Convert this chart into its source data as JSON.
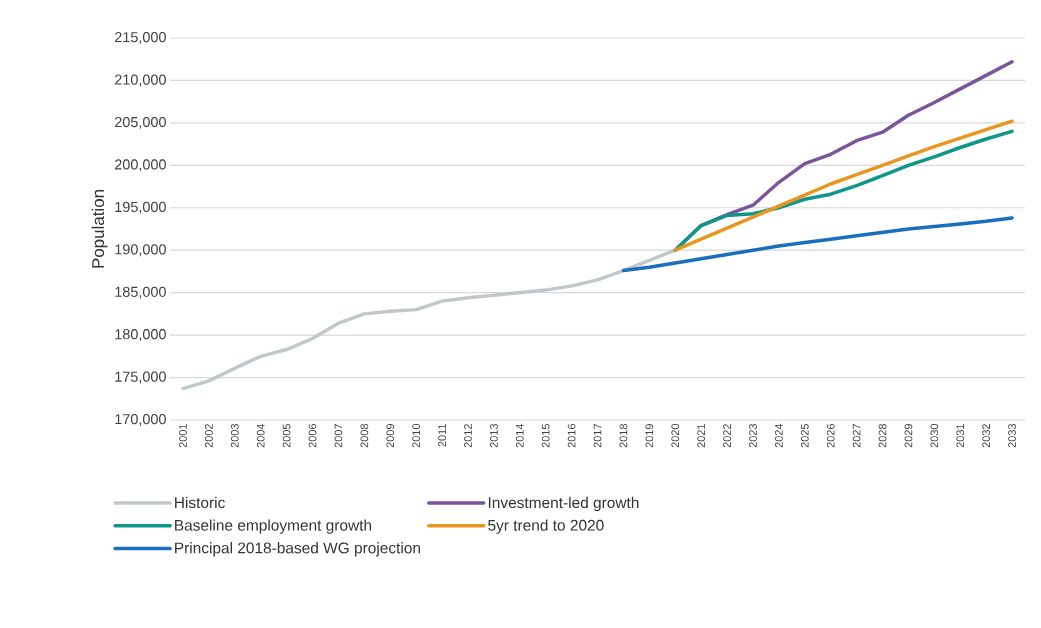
{
  "chart_data": {
    "type": "line",
    "ylabel": "Population",
    "categories": [
      "2001",
      "2002",
      "2003",
      "2004",
      "2005",
      "2006",
      "2007",
      "2008",
      "2009",
      "2010",
      "2011",
      "2012",
      "2013",
      "2014",
      "2015",
      "2016",
      "2017",
      "2018",
      "2019",
      "2020",
      "2021",
      "2022",
      "2023",
      "2024",
      "2025",
      "2026",
      "2027",
      "2028",
      "2029",
      "2030",
      "2031",
      "2032",
      "2033"
    ],
    "series": [
      {
        "name": "Historic",
        "color": "#bfc8cc",
        "values": [
          173700,
          174600,
          176100,
          177500,
          178300,
          179600,
          181400,
          182500,
          182800,
          183000,
          184000,
          184400,
          184700,
          185000,
          185300,
          185800,
          186500,
          187600,
          188800,
          190000,
          null,
          null,
          null,
          null,
          null,
          null,
          null,
          null,
          null,
          null,
          null,
          null,
          null
        ]
      },
      {
        "name": "Investment-led growth",
        "color": "#7a559b",
        "values": [
          null,
          null,
          null,
          null,
          null,
          null,
          null,
          null,
          null,
          null,
          null,
          null,
          null,
          null,
          null,
          null,
          null,
          null,
          null,
          190000,
          192900,
          194200,
          195300,
          198000,
          200200,
          201300,
          202900,
          203900,
          205900,
          207400,
          209000,
          210600,
          212200
        ]
      },
      {
        "name": "Baseline employment growth",
        "color": "#0e968a",
        "values": [
          null,
          null,
          null,
          null,
          null,
          null,
          null,
          null,
          null,
          null,
          null,
          null,
          null,
          null,
          null,
          null,
          null,
          null,
          null,
          190000,
          192900,
          194100,
          194300,
          195000,
          196000,
          196600,
          197600,
          198800,
          200000,
          201000,
          202100,
          203100,
          204000
        ]
      },
      {
        "name": "5yr trend to 2020",
        "color": "#e8961e",
        "values": [
          null,
          null,
          null,
          null,
          null,
          null,
          null,
          null,
          null,
          null,
          null,
          null,
          null,
          null,
          null,
          null,
          null,
          null,
          null,
          190000,
          191300,
          192600,
          193900,
          195200,
          196500,
          197800,
          198900,
          200000,
          201100,
          202200,
          203200,
          204200,
          205200
        ]
      },
      {
        "name": "Principal 2018-based WG projection",
        "color": "#1a6fbd",
        "values": [
          null,
          null,
          null,
          null,
          null,
          null,
          null,
          null,
          null,
          null,
          null,
          null,
          null,
          null,
          null,
          null,
          null,
          187600,
          188000,
          188500,
          189000,
          189500,
          190000,
          190500,
          190900,
          191300,
          191700,
          192100,
          192500,
          192800,
          193100,
          193400,
          193800
        ]
      }
    ],
    "ylim": [
      170000,
      215000
    ],
    "yticks": [
      {
        "value": 170000,
        "label": "170,000"
      },
      {
        "value": 175000,
        "label": "175,000"
      },
      {
        "value": 180000,
        "label": "180,000"
      },
      {
        "value": 185000,
        "label": "185,000"
      },
      {
        "value": 190000,
        "label": "190,000"
      },
      {
        "value": 195000,
        "label": "195,000"
      },
      {
        "value": 200000,
        "label": "200,000"
      },
      {
        "value": 205000,
        "label": "205,000"
      },
      {
        "value": 210000,
        "label": "210,000"
      },
      {
        "value": 215000,
        "label": "215,000"
      }
    ],
    "grid": "y",
    "legend": "bottom",
    "line_style": "solid"
  }
}
